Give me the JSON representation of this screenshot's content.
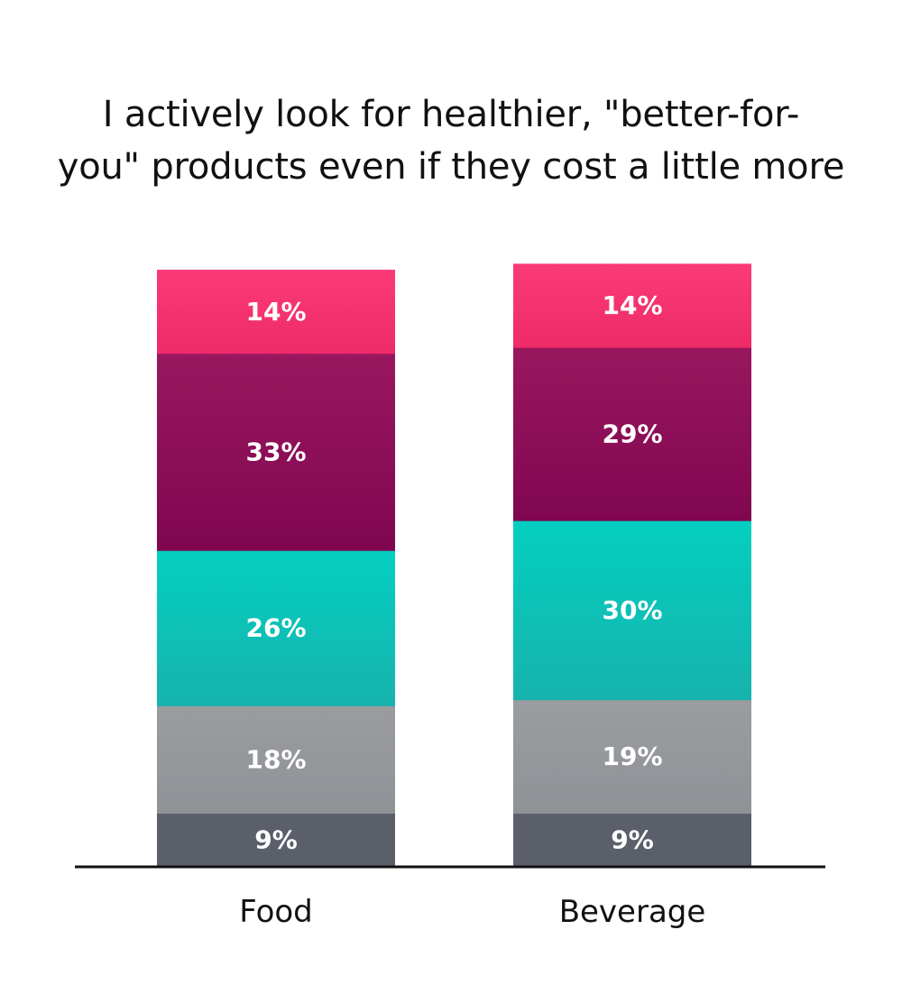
{
  "chart_data": {
    "type": "bar",
    "stacked": true,
    "title_lines": [
      "I actively look for healthier, \"better-for-",
      "you\" products even if they cost a little more"
    ],
    "categories": [
      "Food",
      "Beverage"
    ],
    "series": [
      {
        "values": [
          9,
          9
        ],
        "labels": [
          "9%",
          "9%"
        ],
        "color_top": "#5b5f6a",
        "color_bottom": "#5b5f6a"
      },
      {
        "values": [
          18,
          19
        ],
        "labels": [
          "18%",
          "19%"
        ],
        "color_top": "#9a9ca0",
        "color_bottom": "#8f9296"
      },
      {
        "values": [
          26,
          30
        ],
        "labels": [
          "26%",
          "30%"
        ],
        "color_top": "#04cfc0",
        "color_bottom": "#16b3ad"
      },
      {
        "values": [
          33,
          29
        ],
        "labels": [
          "33%",
          "29%"
        ],
        "color_top": "#99175f",
        "color_bottom": "#800650"
      },
      {
        "values": [
          14,
          14
        ],
        "labels": [
          "14%",
          "14%"
        ],
        "color_top": "#fb3a78",
        "color_bottom": "#ee2b68"
      }
    ],
    "axis_color": "#111111",
    "grid": false,
    "legend": "none"
  }
}
